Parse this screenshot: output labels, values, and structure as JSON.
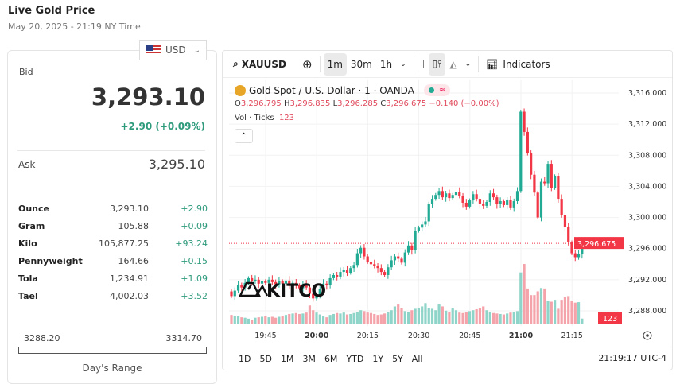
{
  "header": {
    "title": "Live Gold Price",
    "subtitle": "May 20, 2025 - 21:19 NY Time"
  },
  "currency": {
    "selected": "USD",
    "icon": "us-flag-icon"
  },
  "quote": {
    "bid_label": "Bid",
    "bid": "3,293.10",
    "change": "+2.90 (+0.09%)",
    "ask_label": "Ask",
    "ask": "3,295.10"
  },
  "units": [
    {
      "name": "Ounce",
      "value": "3,293.10",
      "change": "+2.90"
    },
    {
      "name": "Gram",
      "value": "105.88",
      "change": "+0.09"
    },
    {
      "name": "Kilo",
      "value": "105,877.25",
      "change": "+93.24"
    },
    {
      "name": "Pennyweight",
      "value": "164.66",
      "change": "+0.15"
    },
    {
      "name": "Tola",
      "value": "1,234.91",
      "change": "+1.09"
    },
    {
      "name": "Tael",
      "value": "4,002.03",
      "change": "+3.52"
    }
  ],
  "range": {
    "low": "3288.20",
    "high": "3314.70",
    "label": "Day's Range"
  },
  "toolbar": {
    "symbol": "XAUUSD",
    "intervals": [
      "1m",
      "30m",
      "1h"
    ],
    "active_interval": "1m",
    "indicators": "Indicators"
  },
  "legend": {
    "title": "Gold Spot / U.S. Dollar · 1 · OANDA",
    "o": "3,296.795",
    "h": "3,296.835",
    "l": "3,296.285",
    "c": "3,296.675",
    "change": "−0.140 (−0.00%)",
    "vol_label": "Vol · Ticks",
    "vol_value": "123"
  },
  "periods": [
    "1D",
    "5D",
    "1M",
    "3M",
    "6M",
    "YTD",
    "1Y",
    "5Y",
    "All"
  ],
  "clock": "21:19:17 UTC-4",
  "watermark": "KITCO",
  "colors": {
    "up": "#22ab94",
    "down": "#f23645",
    "up_vol": "#8fd4c8",
    "down_vol": "#f5a3aa",
    "accent_change": "#2e9a7c"
  },
  "chart_data": {
    "type": "candlestick",
    "start_time": "19:35",
    "interval_minutes": 1,
    "first_open": 3290.5,
    "closes": [
      3289.9,
      3290.6,
      3291.3,
      3291.0,
      3291.6,
      3292.2,
      3291.8,
      3292.0,
      3291.5,
      3291.8,
      3291.6,
      3292.0,
      3291.7,
      3291.4,
      3291.8,
      3291.5,
      3291.9,
      3291.2,
      3291.6,
      3291.3,
      3290.9,
      3291.4,
      3291.0,
      3290.2,
      3289.6,
      3290.1,
      3290.8,
      3291.5,
      3291.3,
      3292.2,
      3292.6,
      3292.4,
      3293.0,
      3293.3,
      3292.9,
      3293.5,
      3293.9,
      3295.4,
      3296.1,
      3295.0,
      3294.3,
      3294.0,
      3293.8,
      3293.5,
      3293.0,
      3292.6,
      3293.6,
      3294.5,
      3295.0,
      3294.7,
      3294.2,
      3295.5,
      3296.4,
      3295.8,
      3298.3,
      3298.7,
      3299.1,
      3299.5,
      3301.7,
      3302.4,
      3302.9,
      3303.4,
      3302.6,
      3303.1,
      3302.5,
      3302.9,
      3303.3,
      3302.8,
      3301.9,
      3301.4,
      3302.2,
      3303.0,
      3302.4,
      3301.8,
      3301.5,
      3302.0,
      3303.1,
      3302.6,
      3301.7,
      3302.1,
      3301.6,
      3302.2,
      3301.3,
      3302.1,
      3303.4,
      3313.6,
      3311.0,
      3308.3,
      3305.5,
      3303.2,
      3300.0,
      3304.6,
      3304.4,
      3306.9,
      3303.8,
      3305.3,
      3302.4,
      3300.3,
      3298.8,
      3296.8,
      3295.4,
      3294.9,
      3295.3,
      3296.675
    ],
    "volumes": [
      200,
      180,
      170,
      150,
      140,
      120,
      100,
      140,
      150,
      160,
      170,
      150,
      160,
      140,
      160,
      180,
      200,
      220,
      230,
      240,
      220,
      230,
      250,
      400,
      300,
      250,
      210,
      180,
      150,
      200,
      220,
      240,
      230,
      250,
      210,
      220,
      240,
      260,
      300,
      280,
      250,
      240,
      220,
      200,
      210,
      230,
      260,
      300,
      380,
      420,
      350,
      280,
      260,
      300,
      330,
      340,
      380,
      450,
      350,
      330,
      300,
      420,
      380,
      290,
      260,
      340,
      300,
      250,
      240,
      260,
      280,
      300,
      320,
      350,
      380,
      300,
      260,
      240,
      230,
      220,
      210,
      230,
      250,
      260,
      280,
      1100,
      1280,
      760,
      620,
      620,
      700,
      770,
      760,
      500,
      480,
      520,
      330,
      520,
      580,
      600,
      500,
      460,
      470,
      123
    ],
    "y_ticks": [
      "3,316.000",
      "3,312.000",
      "3,308.000",
      "3,304.000",
      "3,300.000",
      "3,296.000",
      "3,292.000",
      "3,288.000"
    ],
    "y_range": [
      3286.5,
      3316.3
    ],
    "x_ticks": [
      {
        "t": "19:45",
        "bold": false
      },
      {
        "t": "20:00",
        "bold": true
      },
      {
        "t": "20:15",
        "bold": false
      },
      {
        "t": "20:30",
        "bold": false
      },
      {
        "t": "20:45",
        "bold": false
      },
      {
        "t": "21:00",
        "bold": true
      },
      {
        "t": "21:15",
        "bold": false
      }
    ],
    "last_price": "3,296.675",
    "last_volume": "123",
    "grid": true
  }
}
